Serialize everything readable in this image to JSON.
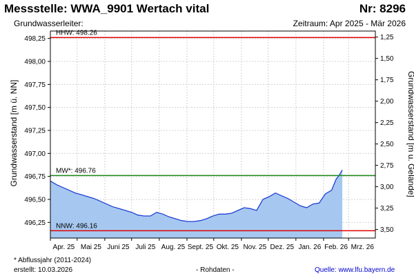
{
  "header": {
    "title": "Messstelle: WWA_9901 Wertach vital",
    "nr": "Nr: 8296",
    "aquifer_label": "Grundwasserleiter:",
    "period": "Zeitraum: Apr 2025 - Mär 2026"
  },
  "footer": {
    "footnote": "* Abflussjahr (2011-2024)",
    "created": "erstellt:  10.03.2026",
    "raw": "- Rohdaten -",
    "source": "Quelle: www.lfu.bayern.de"
  },
  "colors": {
    "fill": "#a6c8f0",
    "line": "#1f3fd6",
    "hhw": "#e00000",
    "mw": "#1a8a1a",
    "nnw": "#e00000",
    "grid": "#d0d0d0"
  },
  "chart_data": {
    "type": "area",
    "title": "Messstelle: WWA_9901 Wertach vital",
    "ylabel": "Grundwasserstand [m ü. NN]",
    "ylabel_right": "Grundwasserstand [m u. Gelände]",
    "ylim": [
      496.08,
      498.33
    ],
    "ylim_right": [
      3.6,
      1.18
    ],
    "yticks": [
      "496,25",
      "496,50",
      "496,75",
      "497,00",
      "497,25",
      "497,50",
      "497,75",
      "498,00",
      "498,25"
    ],
    "yticks_right": [
      "1,25",
      "1,50",
      "1,75",
      "2,00",
      "2,25",
      "2,50",
      "2,75",
      "3,00",
      "3,25",
      "3,50"
    ],
    "xticks": [
      "Apr. 25",
      "Mai 25",
      "Juni 25",
      "Juli 25",
      "Aug. 25",
      "Sept. 25",
      "Okt. 25",
      "Nov. 25",
      "Dez. 25",
      "Jan. 26",
      "Feb. 26",
      "Mrz. 26"
    ],
    "grid": true,
    "reference_lines": [
      {
        "label": "HHW: 498.26",
        "value": 498.26
      },
      {
        "label": "MW*: 496.76",
        "value": 496.76
      },
      {
        "label": "NNW: 496.16",
        "value": 496.16
      }
    ],
    "series": [
      {
        "x": [
          "2025-04-01",
          "2025-04-08",
          "2025-04-15",
          "2025-04-22",
          "2025-04-29",
          "2025-05-06",
          "2025-05-13",
          "2025-05-20",
          "2025-05-27",
          "2025-06-03",
          "2025-06-10",
          "2025-06-17",
          "2025-06-24",
          "2025-07-01",
          "2025-07-08",
          "2025-07-15",
          "2025-07-22",
          "2025-07-29",
          "2025-08-05",
          "2025-08-12",
          "2025-08-19",
          "2025-08-26",
          "2025-09-02",
          "2025-09-09",
          "2025-09-16",
          "2025-09-23",
          "2025-09-30",
          "2025-10-07",
          "2025-10-14",
          "2025-10-21",
          "2025-10-28",
          "2025-11-04",
          "2025-11-11",
          "2025-11-18",
          "2025-11-25",
          "2025-12-02",
          "2025-12-09",
          "2025-12-16",
          "2025-12-23",
          "2025-12-30",
          "2026-01-06",
          "2026-01-13",
          "2026-01-20",
          "2026-01-27",
          "2026-02-03",
          "2026-02-10",
          "2026-02-15",
          "2026-02-19",
          "2026-02-22"
        ],
        "y": [
          496.7,
          496.66,
          496.63,
          496.6,
          496.57,
          496.55,
          496.53,
          496.51,
          496.48,
          496.45,
          496.42,
          496.4,
          496.38,
          496.36,
          496.33,
          496.32,
          496.32,
          496.36,
          496.34,
          496.31,
          496.29,
          496.27,
          496.26,
          496.26,
          496.27,
          496.29,
          496.32,
          496.34,
          496.34,
          496.35,
          496.38,
          496.41,
          496.4,
          496.38,
          496.5,
          496.53,
          496.57,
          496.54,
          496.51,
          496.47,
          496.43,
          496.41,
          496.45,
          496.46,
          496.56,
          496.6,
          496.72,
          496.77,
          496.82
        ]
      }
    ]
  }
}
